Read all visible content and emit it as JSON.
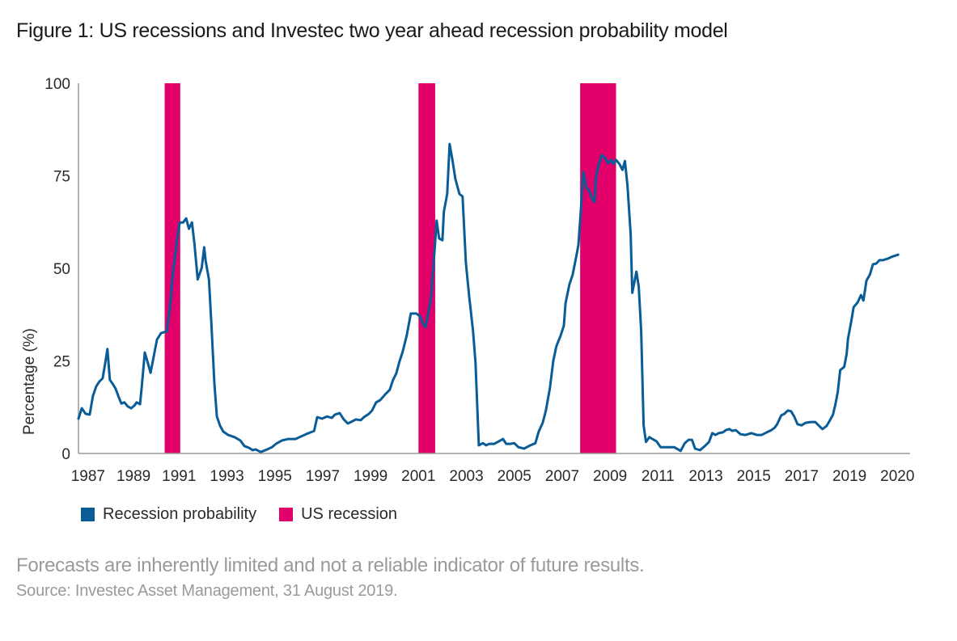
{
  "chart_data": {
    "type": "line",
    "title": "Figure 1: US recessions and Investec two year ahead recession probability model",
    "xlabel": "",
    "ylabel": "Percentage (%)",
    "ylim": [
      0,
      100
    ],
    "xlim": [
      1987,
      2021.7
    ],
    "yticks": [
      "0",
      "25",
      "50",
      "75",
      "100"
    ],
    "ytick_values": [
      0,
      25,
      50,
      75,
      100
    ],
    "xticks": [
      {
        "label": "1987",
        "value": 1987.4
      },
      {
        "label": "1989",
        "value": 1989.3
      },
      {
        "label": "1991",
        "value": 1991.2
      },
      {
        "label": "1993",
        "value": 1993.2
      },
      {
        "label": "1995",
        "value": 1995.2
      },
      {
        "label": "1997",
        "value": 1997.2
      },
      {
        "label": "1999",
        "value": 1999.2
      },
      {
        "label": "2001",
        "value": 2001.2
      },
      {
        "label": "2003",
        "value": 2003.2
      },
      {
        "label": "2005",
        "value": 2005.2
      },
      {
        "label": "2007",
        "value": 2007.2
      },
      {
        "label": "2009",
        "value": 2009.2
      },
      {
        "label": "2011",
        "value": 2011.2
      },
      {
        "label": "2013",
        "value": 2013.2
      },
      {
        "label": "2015",
        "value": 2015.2
      },
      {
        "label": "2017",
        "value": 2017.2
      },
      {
        "label": "2019",
        "value": 2019.2
      },
      {
        "label": "2020",
        "value": 2021.2
      }
    ],
    "grid": false,
    "legend_position": "bottom-left",
    "series": [
      {
        "name": "Recession probability",
        "color": "#0a5c97",
        "points": [
          [
            1987.0,
            9.4
          ],
          [
            1987.14,
            12.2
          ],
          [
            1987.3,
            10.7
          ],
          [
            1987.47,
            10.5
          ],
          [
            1987.6,
            15.5
          ],
          [
            1987.74,
            18.1
          ],
          [
            1987.87,
            19.4
          ],
          [
            1988.01,
            20.3
          ],
          [
            1988.11,
            24.2
          ],
          [
            1988.21,
            28.2
          ],
          [
            1988.31,
            19.9
          ],
          [
            1988.45,
            18.6
          ],
          [
            1988.55,
            17.5
          ],
          [
            1988.69,
            15.1
          ],
          [
            1988.79,
            13.5
          ],
          [
            1988.92,
            13.8
          ],
          [
            1989.06,
            12.7
          ],
          [
            1989.2,
            12.2
          ],
          [
            1989.33,
            12.9
          ],
          [
            1989.43,
            13.8
          ],
          [
            1989.57,
            13.3
          ],
          [
            1989.64,
            17.7
          ],
          [
            1989.77,
            27.3
          ],
          [
            1989.91,
            24.2
          ],
          [
            1990.01,
            21.8
          ],
          [
            1990.15,
            26.4
          ],
          [
            1990.28,
            30.8
          ],
          [
            1990.45,
            32.5
          ],
          [
            1990.69,
            33.0
          ],
          [
            1990.82,
            39.5
          ],
          [
            1990.93,
            47.8
          ],
          [
            1991.1,
            57.0
          ],
          [
            1991.23,
            62.4
          ],
          [
            1991.37,
            62.4
          ],
          [
            1991.5,
            63.5
          ],
          [
            1991.61,
            60.7
          ],
          [
            1991.74,
            62.4
          ],
          [
            1991.84,
            56.8
          ],
          [
            1991.98,
            47.0
          ],
          [
            1992.15,
            50.2
          ],
          [
            1992.25,
            55.7
          ],
          [
            1992.31,
            52.0
          ],
          [
            1992.45,
            47.0
          ],
          [
            1992.55,
            35.0
          ],
          [
            1992.68,
            18.6
          ],
          [
            1992.78,
            10.0
          ],
          [
            1992.92,
            7.4
          ],
          [
            1993.05,
            5.9
          ],
          [
            1993.25,
            5.0
          ],
          [
            1993.52,
            4.4
          ],
          [
            1993.76,
            3.5
          ],
          [
            1993.93,
            2.0
          ],
          [
            1994.13,
            1.5
          ],
          [
            1994.27,
            0.9
          ],
          [
            1994.4,
            1.1
          ],
          [
            1994.61,
            0.4
          ],
          [
            1994.88,
            1.1
          ],
          [
            1995.08,
            1.7
          ],
          [
            1995.25,
            2.6
          ],
          [
            1995.49,
            3.5
          ],
          [
            1995.76,
            3.9
          ],
          [
            1996.06,
            3.9
          ],
          [
            1996.3,
            4.6
          ],
          [
            1996.5,
            5.2
          ],
          [
            1996.84,
            6.1
          ],
          [
            1996.97,
            9.8
          ],
          [
            1997.18,
            9.4
          ],
          [
            1997.38,
            10.0
          ],
          [
            1997.58,
            9.6
          ],
          [
            1997.71,
            10.5
          ],
          [
            1997.91,
            10.9
          ],
          [
            1998.08,
            9.2
          ],
          [
            1998.25,
            8.1
          ],
          [
            1998.38,
            8.5
          ],
          [
            1998.58,
            9.2
          ],
          [
            1998.79,
            9.0
          ],
          [
            1998.92,
            9.8
          ],
          [
            1999.13,
            10.7
          ],
          [
            1999.26,
            11.6
          ],
          [
            1999.43,
            13.8
          ],
          [
            1999.6,
            14.4
          ],
          [
            1999.8,
            15.9
          ],
          [
            2000.0,
            17.2
          ],
          [
            2000.14,
            19.9
          ],
          [
            2000.27,
            21.6
          ],
          [
            2000.41,
            24.9
          ],
          [
            2000.54,
            27.5
          ],
          [
            2000.71,
            31.9
          ],
          [
            2000.88,
            37.8
          ],
          [
            2001.11,
            37.8
          ],
          [
            2001.25,
            37.1
          ],
          [
            2001.39,
            35.2
          ],
          [
            2001.49,
            34.1
          ],
          [
            2001.62,
            38.2
          ],
          [
            2001.72,
            42.1
          ],
          [
            2001.82,
            50.4
          ],
          [
            2001.96,
            62.9
          ],
          [
            2002.06,
            58.1
          ],
          [
            2002.2,
            57.6
          ],
          [
            2002.26,
            65.3
          ],
          [
            2002.4,
            70.1
          ],
          [
            2002.5,
            83.6
          ],
          [
            2002.6,
            79.9
          ],
          [
            2002.74,
            74.2
          ],
          [
            2002.91,
            70.1
          ],
          [
            2003.04,
            69.4
          ],
          [
            2003.18,
            51.5
          ],
          [
            2003.31,
            42.8
          ],
          [
            2003.48,
            33.0
          ],
          [
            2003.58,
            24.5
          ],
          [
            2003.72,
            2.2
          ],
          [
            2003.89,
            2.8
          ],
          [
            2004.02,
            2.2
          ],
          [
            2004.16,
            2.6
          ],
          [
            2004.36,
            2.6
          ],
          [
            2004.56,
            3.3
          ],
          [
            2004.73,
            3.9
          ],
          [
            2004.86,
            2.6
          ],
          [
            2005.03,
            2.6
          ],
          [
            2005.2,
            2.8
          ],
          [
            2005.37,
            1.7
          ],
          [
            2005.61,
            1.3
          ],
          [
            2005.81,
            2.0
          ],
          [
            2006.08,
            2.8
          ],
          [
            2006.22,
            5.9
          ],
          [
            2006.39,
            8.3
          ],
          [
            2006.52,
            11.6
          ],
          [
            2006.69,
            17.7
          ],
          [
            2006.83,
            25.1
          ],
          [
            2006.96,
            29.0
          ],
          [
            2007.13,
            31.7
          ],
          [
            2007.27,
            34.5
          ],
          [
            2007.34,
            40.6
          ],
          [
            2007.5,
            45.6
          ],
          [
            2007.64,
            48.3
          ],
          [
            2007.77,
            52.6
          ],
          [
            2007.88,
            56.3
          ],
          [
            2007.98,
            65.7
          ],
          [
            2008.08,
            76.0
          ],
          [
            2008.21,
            71.8
          ],
          [
            2008.31,
            71.2
          ],
          [
            2008.41,
            69.4
          ],
          [
            2008.55,
            67.9
          ],
          [
            2008.61,
            74.5
          ],
          [
            2008.71,
            77.7
          ],
          [
            2008.85,
            80.6
          ],
          [
            2008.98,
            79.9
          ],
          [
            2009.12,
            78.4
          ],
          [
            2009.25,
            79.3
          ],
          [
            2009.35,
            78.2
          ],
          [
            2009.45,
            79.3
          ],
          [
            2009.59,
            78.2
          ],
          [
            2009.72,
            76.6
          ],
          [
            2009.82,
            79.0
          ],
          [
            2009.93,
            72.3
          ],
          [
            2010.06,
            59.2
          ],
          [
            2010.13,
            43.4
          ],
          [
            2010.3,
            49.1
          ],
          [
            2010.4,
            45.0
          ],
          [
            2010.5,
            33.0
          ],
          [
            2010.6,
            7.6
          ],
          [
            2010.7,
            3.1
          ],
          [
            2010.84,
            4.4
          ],
          [
            2010.97,
            3.9
          ],
          [
            2011.14,
            3.3
          ],
          [
            2011.31,
            1.7
          ],
          [
            2011.51,
            1.7
          ],
          [
            2011.88,
            1.7
          ],
          [
            2012.15,
            0.7
          ],
          [
            2012.32,
            2.8
          ],
          [
            2012.48,
            3.7
          ],
          [
            2012.62,
            3.7
          ],
          [
            2012.75,
            1.3
          ],
          [
            2012.96,
            0.9
          ],
          [
            2013.16,
            2.0
          ],
          [
            2013.33,
            3.1
          ],
          [
            2013.47,
            5.5
          ],
          [
            2013.6,
            5.0
          ],
          [
            2013.74,
            5.5
          ],
          [
            2013.91,
            5.7
          ],
          [
            2014.04,
            6.3
          ],
          [
            2014.18,
            6.6
          ],
          [
            2014.31,
            6.1
          ],
          [
            2014.45,
            6.3
          ],
          [
            2014.65,
            5.2
          ],
          [
            2014.86,
            5.0
          ],
          [
            2015.1,
            5.5
          ],
          [
            2015.33,
            5.0
          ],
          [
            2015.53,
            5.0
          ],
          [
            2015.74,
            5.7
          ],
          [
            2015.94,
            6.3
          ],
          [
            2016.08,
            7.0
          ],
          [
            2016.18,
            7.9
          ],
          [
            2016.35,
            10.3
          ],
          [
            2016.48,
            10.7
          ],
          [
            2016.62,
            11.6
          ],
          [
            2016.76,
            11.4
          ],
          [
            2016.89,
            10.0
          ],
          [
            2017.03,
            7.9
          ],
          [
            2017.2,
            7.6
          ],
          [
            2017.37,
            8.3
          ],
          [
            2017.57,
            8.5
          ],
          [
            2017.77,
            8.5
          ],
          [
            2017.94,
            7.4
          ],
          [
            2018.07,
            6.6
          ],
          [
            2018.24,
            7.4
          ],
          [
            2018.38,
            8.9
          ],
          [
            2018.51,
            10.5
          ],
          [
            2018.61,
            13.3
          ],
          [
            2018.71,
            16.6
          ],
          [
            2018.81,
            22.5
          ],
          [
            2018.98,
            23.4
          ],
          [
            2019.08,
            26.9
          ],
          [
            2019.14,
            31.0
          ],
          [
            2019.27,
            35.6
          ],
          [
            2019.37,
            39.5
          ],
          [
            2019.54,
            40.8
          ],
          [
            2019.68,
            42.8
          ],
          [
            2019.78,
            41.3
          ],
          [
            2019.91,
            46.7
          ],
          [
            2020.05,
            48.3
          ],
          [
            2020.18,
            51.1
          ],
          [
            2020.32,
            51.3
          ],
          [
            2020.45,
            52.2
          ],
          [
            2020.58,
            52.2
          ],
          [
            2020.79,
            52.6
          ],
          [
            2020.96,
            53.1
          ],
          [
            2021.23,
            53.7
          ]
        ]
      }
    ],
    "recessions": {
      "name": "US recession",
      "color": "#e2006a",
      "periods": [
        {
          "start": 1990.6,
          "end": 1991.25
        },
        {
          "start": 2001.2,
          "end": 2001.9
        },
        {
          "start": 2007.95,
          "end": 2009.45
        }
      ]
    }
  },
  "legend": {
    "items": [
      {
        "label": "Recession probability",
        "color": "#0a5c97"
      },
      {
        "label": "US recession",
        "color": "#e2006a"
      }
    ]
  },
  "footer": {
    "note": "Forecasts are inherently limited and not a reliable indicator of future results.",
    "source": "Source: Investec Asset Management, 31 August 2019."
  }
}
